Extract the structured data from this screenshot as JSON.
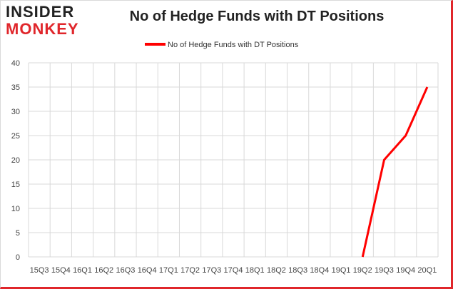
{
  "logo": {
    "line1": "INSIDER",
    "line2": "MONKEY"
  },
  "colors": {
    "series": "#ff0000",
    "grid": "#d9d9d9",
    "border": "#e0262b"
  },
  "chart_data": {
    "type": "line",
    "title": "No of Hedge Funds with DT Positions",
    "xlabel": "",
    "ylabel": "",
    "legend_position": "top-center",
    "grid": true,
    "categories": [
      "15Q3",
      "15Q4",
      "16Q1",
      "16Q2",
      "16Q3",
      "16Q4",
      "17Q1",
      "17Q2",
      "17Q3",
      "17Q4",
      "18Q1",
      "18Q2",
      "18Q3",
      "18Q4",
      "19Q1",
      "19Q2",
      "19Q3",
      "19Q4",
      "20Q1"
    ],
    "ylim": [
      0,
      40
    ],
    "yticks": [
      0,
      5,
      10,
      15,
      20,
      25,
      30,
      35,
      40
    ],
    "series": [
      {
        "name": "No of Hedge Funds with DT Positions",
        "values": [
          null,
          null,
          null,
          null,
          null,
          null,
          null,
          null,
          null,
          null,
          null,
          null,
          null,
          null,
          null,
          0,
          20,
          25,
          35
        ]
      }
    ]
  }
}
